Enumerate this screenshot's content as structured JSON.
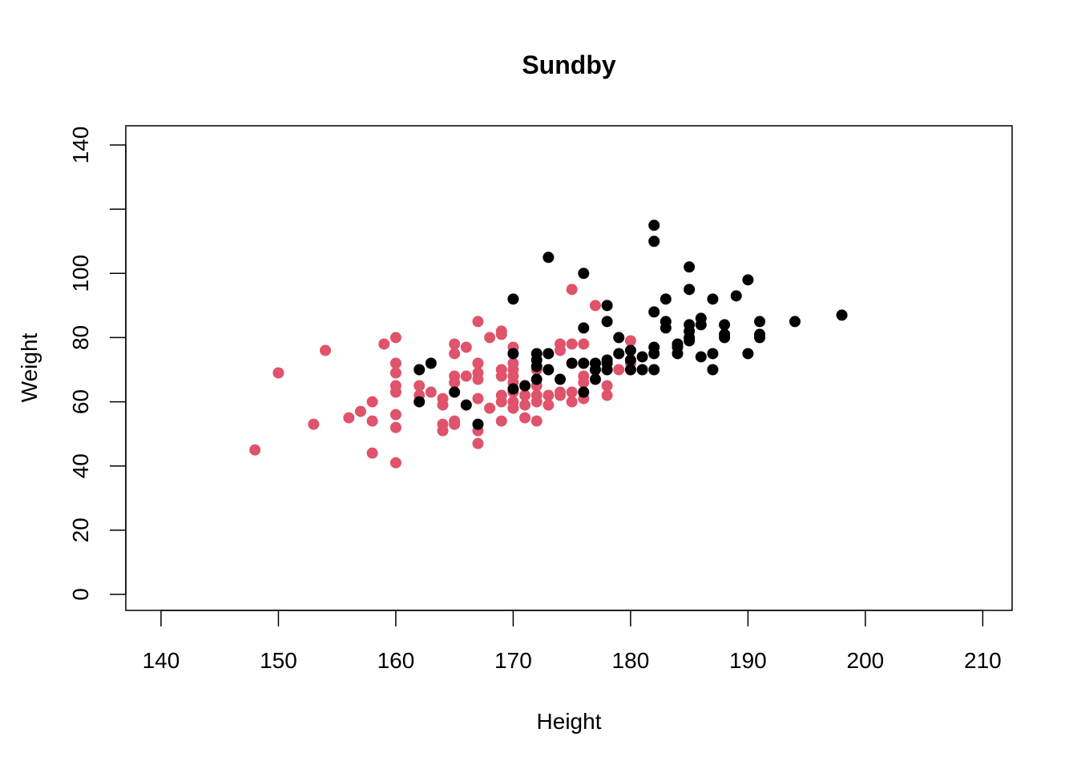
{
  "chart_data": {
    "type": "scatter",
    "title": "Sundby",
    "xlabel": "Height",
    "ylabel": "Weight",
    "xlim": [
      137,
      212.5
    ],
    "ylim": [
      -5,
      146
    ],
    "xticks": [
      140,
      150,
      160,
      170,
      180,
      190,
      200,
      210
    ],
    "yticks": [
      0,
      20,
      40,
      60,
      80,
      100,
      120,
      140
    ],
    "ytick_labels": [
      "0",
      "20",
      "40",
      "60",
      "80",
      "100",
      "",
      "140"
    ],
    "grid": false,
    "legend": "none",
    "series": [
      {
        "color": "#DF536B",
        "points": [
          [
            148,
            45
          ],
          [
            150,
            69
          ],
          [
            153,
            53
          ],
          [
            154,
            76
          ],
          [
            156,
            55
          ],
          [
            157,
            57
          ],
          [
            158,
            60
          ],
          [
            158,
            54
          ],
          [
            158,
            44
          ],
          [
            159,
            78
          ],
          [
            160,
            80
          ],
          [
            160,
            72
          ],
          [
            160,
            69
          ],
          [
            160,
            65
          ],
          [
            160,
            63
          ],
          [
            160,
            56
          ],
          [
            160,
            52
          ],
          [
            160,
            41
          ],
          [
            162,
            65
          ],
          [
            162,
            62
          ],
          [
            163,
            63
          ],
          [
            164,
            61
          ],
          [
            164,
            59
          ],
          [
            164,
            53
          ],
          [
            164,
            51
          ],
          [
            165,
            78
          ],
          [
            165,
            75
          ],
          [
            165,
            68
          ],
          [
            165,
            66
          ],
          [
            165,
            54
          ],
          [
            165,
            53
          ],
          [
            166,
            77
          ],
          [
            166,
            68
          ],
          [
            167,
            85
          ],
          [
            167,
            72
          ],
          [
            167,
            69
          ],
          [
            167,
            67
          ],
          [
            167,
            61
          ],
          [
            167,
            51
          ],
          [
            167,
            47
          ],
          [
            168,
            80
          ],
          [
            168,
            58
          ],
          [
            169,
            82
          ],
          [
            169,
            81
          ],
          [
            169,
            70
          ],
          [
            169,
            68
          ],
          [
            169,
            62
          ],
          [
            169,
            60
          ],
          [
            169,
            54
          ],
          [
            170,
            77
          ],
          [
            170,
            72
          ],
          [
            170,
            70
          ],
          [
            170,
            68
          ],
          [
            170,
            66
          ],
          [
            170,
            63
          ],
          [
            170,
            60
          ],
          [
            170,
            58
          ],
          [
            171,
            62
          ],
          [
            171,
            59
          ],
          [
            171,
            55
          ],
          [
            172,
            70
          ],
          [
            172,
            65
          ],
          [
            172,
            62
          ],
          [
            172,
            60
          ],
          [
            172,
            54
          ],
          [
            173,
            62
          ],
          [
            173,
            59
          ],
          [
            174,
            78
          ],
          [
            174,
            76
          ],
          [
            174,
            63
          ],
          [
            174,
            62
          ],
          [
            175,
            95
          ],
          [
            175,
            78
          ],
          [
            175,
            63
          ],
          [
            175,
            60
          ],
          [
            176,
            78
          ],
          [
            176,
            68
          ],
          [
            176,
            66
          ],
          [
            176,
            61
          ],
          [
            177,
            90
          ],
          [
            177,
            72
          ],
          [
            177,
            70
          ],
          [
            178,
            65
          ],
          [
            178,
            62
          ],
          [
            179,
            70
          ],
          [
            180,
            79
          ],
          [
            180,
            72
          ]
        ]
      },
      {
        "color": "#000000",
        "points": [
          [
            162,
            70
          ],
          [
            162,
            60
          ],
          [
            163,
            72
          ],
          [
            165,
            63
          ],
          [
            166,
            59
          ],
          [
            167,
            53
          ],
          [
            170,
            92
          ],
          [
            170,
            75
          ],
          [
            170,
            64
          ],
          [
            171,
            65
          ],
          [
            172,
            75
          ],
          [
            172,
            73
          ],
          [
            172,
            71
          ],
          [
            172,
            67
          ],
          [
            173,
            105
          ],
          [
            173,
            75
          ],
          [
            173,
            70
          ],
          [
            174,
            67
          ],
          [
            175,
            72
          ],
          [
            176,
            100
          ],
          [
            176,
            83
          ],
          [
            176,
            72
          ],
          [
            176,
            63
          ],
          [
            177,
            72
          ],
          [
            177,
            70
          ],
          [
            177,
            67
          ],
          [
            178,
            90
          ],
          [
            178,
            85
          ],
          [
            178,
            73
          ],
          [
            178,
            72
          ],
          [
            178,
            70
          ],
          [
            179,
            80
          ],
          [
            179,
            75
          ],
          [
            180,
            76
          ],
          [
            180,
            73
          ],
          [
            180,
            70
          ],
          [
            181,
            74
          ],
          [
            181,
            70
          ],
          [
            182,
            115
          ],
          [
            182,
            110
          ],
          [
            182,
            88
          ],
          [
            182,
            77
          ],
          [
            182,
            75
          ],
          [
            182,
            70
          ],
          [
            183,
            92
          ],
          [
            183,
            85
          ],
          [
            183,
            83
          ],
          [
            184,
            78
          ],
          [
            184,
            77
          ],
          [
            184,
            75
          ],
          [
            185,
            102
          ],
          [
            185,
            95
          ],
          [
            185,
            84
          ],
          [
            185,
            82
          ],
          [
            185,
            80
          ],
          [
            185,
            79
          ],
          [
            186,
            86
          ],
          [
            186,
            84
          ],
          [
            186,
            74
          ],
          [
            187,
            92
          ],
          [
            187,
            75
          ],
          [
            187,
            70
          ],
          [
            188,
            84
          ],
          [
            188,
            81
          ],
          [
            188,
            80
          ],
          [
            189,
            93
          ],
          [
            190,
            98
          ],
          [
            190,
            75
          ],
          [
            191,
            85
          ],
          [
            191,
            81
          ],
          [
            191,
            80
          ],
          [
            194,
            85
          ],
          [
            198,
            87
          ]
        ]
      }
    ]
  }
}
